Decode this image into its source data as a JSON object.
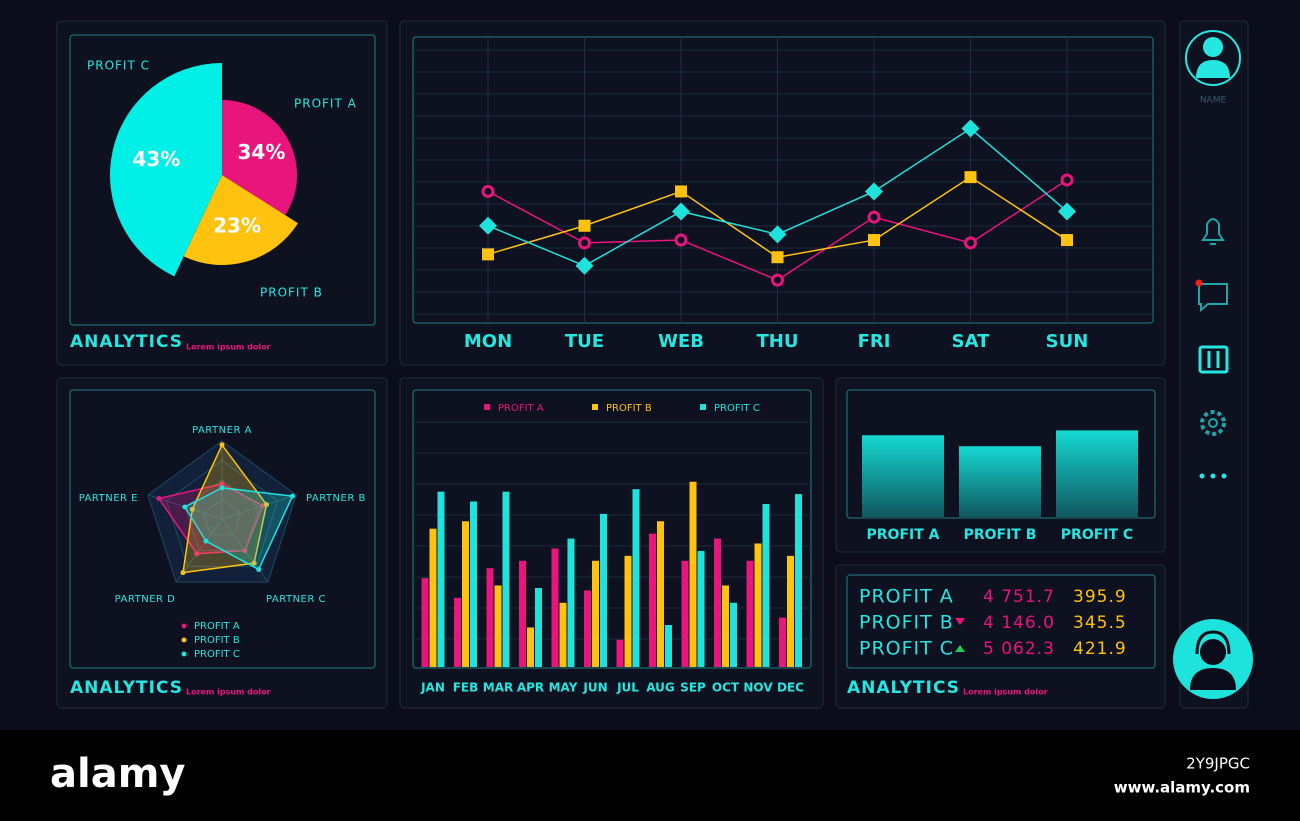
{
  "chart_data": [
    {
      "type": "pie",
      "categories": [
        "PROFIT A",
        "PROFIT B",
        "PROFIT C"
      ],
      "values": [
        34,
        23,
        43
      ],
      "value_labels": [
        "34%",
        "23%",
        "43%"
      ],
      "colors": [
        "#e8157d",
        "#ffc20e",
        "#00f0e8"
      ]
    },
    {
      "type": "line",
      "categories": [
        "MON",
        "TUE",
        "WEB",
        "THU",
        "FRI",
        "SAT",
        "SUN"
      ],
      "ylim": [
        0,
        100
      ],
      "grid": true,
      "series": [
        {
          "color": "#e8157d",
          "marker": "circle",
          "values": [
            46,
            28,
            29,
            15,
            37,
            28,
            50
          ]
        },
        {
          "color": "#ffc20e",
          "marker": "square",
          "values": [
            24,
            34,
            46,
            23,
            29,
            51,
            29
          ]
        },
        {
          "color": "#1ee3dc",
          "marker": "diamond",
          "values": [
            34,
            20,
            39,
            31,
            46,
            68,
            39
          ]
        }
      ]
    },
    {
      "type": "radar",
      "categories": [
        "PARTNER A",
        "PARTNER B",
        "PARTNER C",
        "PARTNER D",
        "PARTNER E"
      ],
      "ylim": [
        0,
        100
      ],
      "series": [
        {
          "name": "PROFIT A",
          "color": "#e8157d",
          "values": [
            45,
            55,
            50,
            55,
            85
          ]
        },
        {
          "name": "PROFIT B",
          "color": "#ffc20e",
          "values": [
            95,
            60,
            70,
            85,
            40
          ]
        },
        {
          "name": "PROFIT C",
          "color": "#1ee3dc",
          "values": [
            40,
            95,
            80,
            35,
            50
          ]
        }
      ]
    },
    {
      "type": "bar",
      "categories": [
        "JAN",
        "FEB",
        "MAR",
        "APR",
        "MAY",
        "JUN",
        "JUL",
        "AUG",
        "SEP",
        "OCT",
        "NOV",
        "DEC"
      ],
      "ylim": [
        0,
        100
      ],
      "legend": "top",
      "series": [
        {
          "name": "PROFIT A",
          "color": "#e8157d",
          "values": [
            36,
            28,
            40,
            43,
            48,
            31,
            11,
            54,
            43,
            52,
            43,
            20
          ]
        },
        {
          "name": "PROFIT B",
          "color": "#ffc20e",
          "values": [
            56,
            59,
            33,
            16,
            26,
            43,
            45,
            59,
            75,
            33,
            50,
            45
          ]
        },
        {
          "name": "PROFIT C",
          "color": "#1ee3dc",
          "values": [
            71,
            67,
            71,
            32,
            52,
            62,
            72,
            17,
            47,
            26,
            66,
            70
          ]
        }
      ]
    },
    {
      "type": "bar",
      "categories": [
        "PROFIT A",
        "PROFIT B",
        "PROFIT C"
      ],
      "values": [
        67,
        58,
        71
      ],
      "color": "#14d9d2",
      "ylim": [
        0,
        100
      ]
    }
  ],
  "panels": [
    {
      "title": "ANALYTICS",
      "subtitle": "Lorem ipsum dolor"
    },
    {
      "title": "ANALYTICS",
      "subtitle": "Lorem ipsum dolor"
    },
    {
      "title": "ANALYTICS",
      "subtitle": "Lorem ipsum dolor"
    }
  ],
  "table": {
    "rows": [
      [
        "PROFIT A",
        "4 751.7",
        "395.9"
      ],
      [
        "PROFIT B",
        "4 146.0",
        "345.5"
      ],
      [
        "PROFIT C",
        "5 062.3",
        "421.9"
      ]
    ]
  },
  "sidebar": {
    "user_label": "NAME"
  },
  "footer": {
    "logo": "alamy",
    "image_id": "2Y9JPGC",
    "url": "www.alamy.com"
  }
}
